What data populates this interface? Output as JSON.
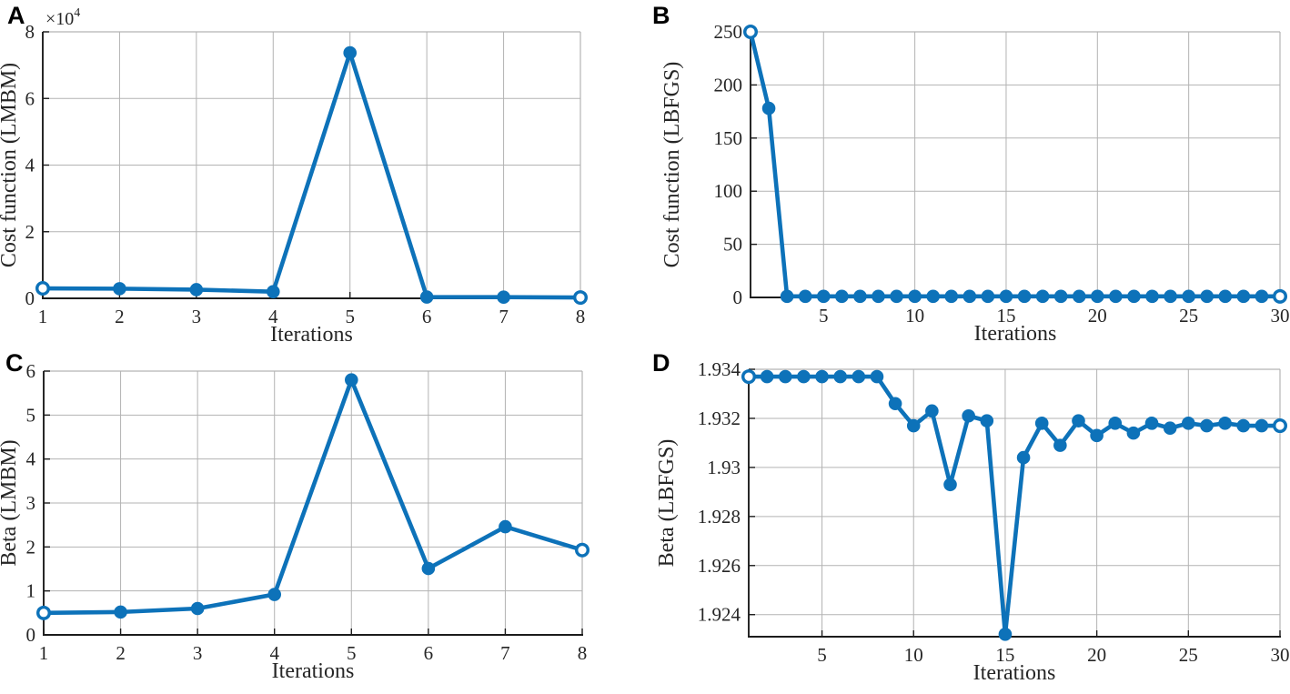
{
  "figure": {
    "background": "#ffffff",
    "accent_color": "#0d72b9",
    "grid_color": "#b3b3b3",
    "frame_color": "#b3b3b3",
    "axis_color": "#1c1c1c",
    "label_color": "#262626"
  },
  "chart_data": [
    {
      "panel": "A",
      "type": "line",
      "x": [
        1,
        2,
        3,
        4,
        5,
        6,
        7,
        8
      ],
      "values": [
        3000,
        2900,
        2600,
        2000,
        73700,
        400,
        350,
        250
      ],
      "title": "",
      "xlabel": "Iterations",
      "ylabel": "Cost function (LMBM)",
      "xlim": [
        1,
        8
      ],
      "ylim": [
        0,
        80000
      ],
      "xticks": [
        1,
        2,
        3,
        4,
        5,
        6,
        7,
        8
      ],
      "xtick_labels": [
        "1",
        "2",
        "3",
        "4",
        "5",
        "6",
        "7",
        "8"
      ],
      "yticks": [
        0,
        20000,
        40000,
        60000,
        80000
      ],
      "ytick_labels": [
        "0",
        "2",
        "4",
        "6",
        "8"
      ],
      "y_exponent_label": "×10",
      "y_exponent_power": "4",
      "grid": true,
      "legend": null,
      "line_color": "#0d72b9"
    },
    {
      "panel": "B",
      "type": "line",
      "x": [
        1,
        2,
        3,
        4,
        5,
        6,
        7,
        8,
        9,
        10,
        11,
        12,
        13,
        14,
        15,
        16,
        17,
        18,
        19,
        20,
        21,
        22,
        23,
        24,
        25,
        26,
        27,
        28,
        29,
        30
      ],
      "values": [
        250,
        178,
        1,
        1,
        1,
        1,
        1,
        1,
        1,
        1,
        1,
        1,
        1,
        1,
        1,
        1,
        1,
        1,
        1,
        1,
        1,
        1,
        1,
        1,
        1,
        1,
        1,
        1,
        1,
        1
      ],
      "title": "",
      "xlabel": "Iterations",
      "ylabel": "Cost function (LBFGS)",
      "xlim": [
        1,
        30
      ],
      "ylim": [
        0,
        250
      ],
      "xticks": [
        5,
        10,
        15,
        20,
        25,
        30
      ],
      "xtick_labels": [
        "5",
        "10",
        "15",
        "20",
        "25",
        "30"
      ],
      "yticks": [
        0,
        50,
        100,
        150,
        200,
        250
      ],
      "ytick_labels": [
        "0",
        "50",
        "100",
        "150",
        "200",
        "250"
      ],
      "y_exponent_label": null,
      "y_exponent_power": null,
      "grid": true,
      "legend": null,
      "line_color": "#0d72b9"
    },
    {
      "panel": "C",
      "type": "line",
      "x": [
        1,
        2,
        3,
        4,
        5,
        6,
        7,
        8
      ],
      "values": [
        0.5,
        0.52,
        0.6,
        0.92,
        5.8,
        1.51,
        2.46,
        1.93
      ],
      "title": "",
      "xlabel": "Iterations",
      "ylabel": "Beta (LMBM)",
      "xlim": [
        1,
        8
      ],
      "ylim": [
        0,
        6
      ],
      "xticks": [
        1,
        2,
        3,
        4,
        5,
        6,
        7,
        8
      ],
      "xtick_labels": [
        "1",
        "2",
        "3",
        "4",
        "5",
        "6",
        "7",
        "8"
      ],
      "yticks": [
        0,
        1,
        2,
        3,
        4,
        5,
        6
      ],
      "ytick_labels": [
        "0",
        "1",
        "2",
        "3",
        "4",
        "5",
        "6"
      ],
      "y_exponent_label": null,
      "y_exponent_power": null,
      "grid": true,
      "legend": null,
      "line_color": "#0d72b9"
    },
    {
      "panel": "D",
      "type": "line",
      "x": [
        1,
        2,
        3,
        4,
        5,
        6,
        7,
        8,
        9,
        10,
        11,
        12,
        13,
        14,
        15,
        16,
        17,
        18,
        19,
        20,
        21,
        22,
        23,
        24,
        25,
        26,
        27,
        28,
        29,
        30
      ],
      "values": [
        1.9337,
        1.9337,
        1.9337,
        1.9337,
        1.9337,
        1.9337,
        1.9337,
        1.9337,
        1.9326,
        1.9317,
        1.9323,
        1.9293,
        1.9321,
        1.9319,
        1.9232,
        1.9304,
        1.9318,
        1.9309,
        1.9319,
        1.9313,
        1.9318,
        1.9314,
        1.9318,
        1.9316,
        1.9318,
        1.9317,
        1.9318,
        1.9317,
        1.9317,
        1.9317
      ],
      "title": "",
      "xlabel": "Iterations",
      "ylabel": "Beta (LBFGS)",
      "xlim": [
        1,
        30
      ],
      "ylim": [
        1.9231,
        1.934
      ],
      "xticks": [
        5,
        10,
        15,
        20,
        25,
        30
      ],
      "xtick_labels": [
        "5",
        "10",
        "15",
        "20",
        "25",
        "30"
      ],
      "yticks": [
        1.924,
        1.926,
        1.928,
        1.93,
        1.932,
        1.934
      ],
      "ytick_labels": [
        "1.924",
        "1.926",
        "1.928",
        "1.93",
        "1.932",
        "1.934"
      ],
      "y_exponent_label": null,
      "y_exponent_power": null,
      "grid": true,
      "legend": null,
      "line_color": "#0d72b9"
    }
  ]
}
